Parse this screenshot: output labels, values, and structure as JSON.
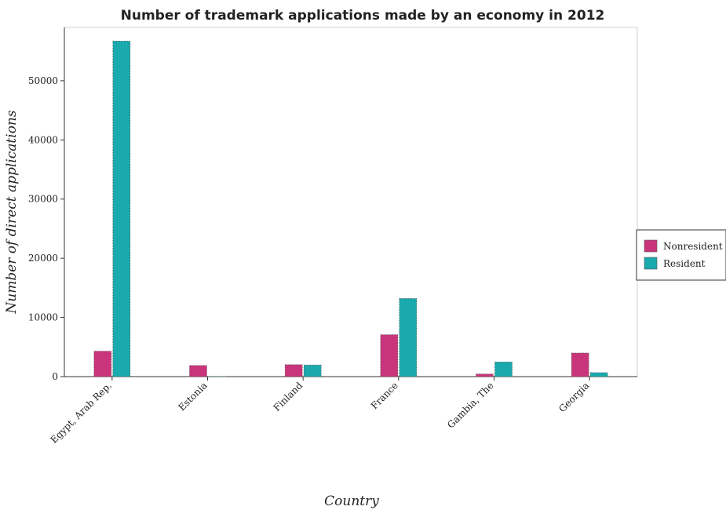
{
  "chart_data": {
    "type": "bar",
    "title": "Number of trademark applications made by an economy in 2012",
    "xlabel": "Country",
    "ylabel": "Number of direct applications",
    "categories": [
      "Egypt, Arab Rep.",
      "Estonia",
      "Finland",
      "France",
      "Gambia, The",
      "Georgia"
    ],
    "series": [
      {
        "name": "Nonresident",
        "color": "#c8357a",
        "values": [
          4310,
          1890,
          2020,
          7080,
          440,
          3990
        ]
      },
      {
        "name": "Resident",
        "color": "#1aa9ad",
        "values": [
          56700,
          30,
          1960,
          13200,
          2480,
          680
        ]
      }
    ],
    "ylim": [
      0,
      59000
    ],
    "yticks": [
      0,
      10000,
      20000,
      30000,
      40000,
      50000
    ],
    "ytick_labels": [
      "0",
      "10000",
      "20000",
      "30000",
      "40000",
      "50000"
    ],
    "legend_position": "right",
    "grid": false
  }
}
